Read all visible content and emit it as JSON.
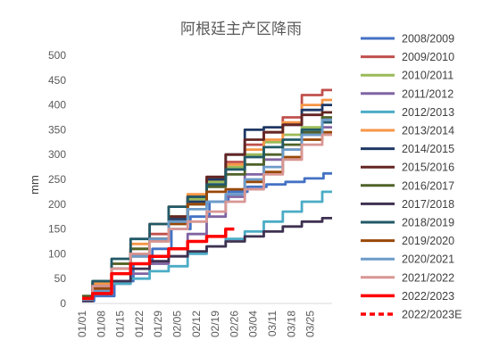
{
  "chart_data": {
    "type": "line",
    "title": "阿根廷主产区降雨",
    "xlabel": "",
    "ylabel": "mm",
    "ylim": [
      0,
      500
    ],
    "yticks": [
      0,
      50,
      100,
      150,
      200,
      250,
      300,
      350,
      400,
      450,
      500
    ],
    "xticks": [
      "01/01",
      "01/08",
      "01/15",
      "01/22",
      "01/29",
      "02/05",
      "02/12",
      "02/19",
      "02/26",
      "03/04",
      "03/11",
      "03/18",
      "03/25"
    ],
    "x_day_range": [
      0,
      92
    ],
    "grid": false,
    "legend_position": "right",
    "series": [
      {
        "name": "2008/2009",
        "color": "#4472C4",
        "dash": false,
        "points": [
          [
            0,
            5
          ],
          [
            8,
            15
          ],
          [
            15,
            45
          ],
          [
            22,
            80
          ],
          [
            29,
            110
          ],
          [
            36,
            150
          ],
          [
            43,
            175
          ],
          [
            50,
            205
          ],
          [
            57,
            225
          ],
          [
            64,
            235
          ],
          [
            71,
            240
          ],
          [
            78,
            245
          ],
          [
            85,
            252
          ],
          [
            92,
            262
          ]
        ]
      },
      {
        "name": "2009/2010",
        "color": "#C0504D",
        "dash": false,
        "points": [
          [
            0,
            10
          ],
          [
            7,
            30
          ],
          [
            14,
            70
          ],
          [
            21,
            110
          ],
          [
            28,
            140
          ],
          [
            35,
            175
          ],
          [
            42,
            215
          ],
          [
            49,
            250
          ],
          [
            56,
            285
          ],
          [
            63,
            320
          ],
          [
            70,
            345
          ],
          [
            77,
            375
          ],
          [
            84,
            420
          ],
          [
            92,
            430
          ]
        ]
      },
      {
        "name": "2010/2011",
        "color": "#9BBB59",
        "dash": false,
        "points": [
          [
            0,
            8
          ],
          [
            7,
            35
          ],
          [
            14,
            60
          ],
          [
            21,
            95
          ],
          [
            28,
            125
          ],
          [
            35,
            175
          ],
          [
            42,
            210
          ],
          [
            49,
            245
          ],
          [
            56,
            275
          ],
          [
            63,
            300
          ],
          [
            70,
            325
          ],
          [
            77,
            340
          ],
          [
            84,
            355
          ],
          [
            92,
            385
          ]
        ]
      },
      {
        "name": "2011/2012",
        "color": "#8064A2",
        "dash": false,
        "points": [
          [
            0,
            5
          ],
          [
            7,
            20
          ],
          [
            14,
            40
          ],
          [
            21,
            60
          ],
          [
            28,
            80
          ],
          [
            35,
            95
          ],
          [
            42,
            140
          ],
          [
            49,
            175
          ],
          [
            56,
            215
          ],
          [
            63,
            260
          ],
          [
            70,
            290
          ],
          [
            77,
            310
          ],
          [
            84,
            340
          ],
          [
            92,
            355
          ]
        ]
      },
      {
        "name": "2012/2013",
        "color": "#4BACC6",
        "dash": false,
        "points": [
          [
            0,
            5
          ],
          [
            7,
            20
          ],
          [
            14,
            40
          ],
          [
            21,
            50
          ],
          [
            28,
            65
          ],
          [
            35,
            75
          ],
          [
            42,
            100
          ],
          [
            49,
            115
          ],
          [
            56,
            130
          ],
          [
            63,
            145
          ],
          [
            70,
            165
          ],
          [
            77,
            185
          ],
          [
            84,
            205
          ],
          [
            92,
            225
          ]
        ]
      },
      {
        "name": "2013/2014",
        "color": "#F79646",
        "dash": false,
        "points": [
          [
            0,
            12
          ],
          [
            7,
            40
          ],
          [
            14,
            80
          ],
          [
            21,
            120
          ],
          [
            28,
            160
          ],
          [
            35,
            195
          ],
          [
            42,
            220
          ],
          [
            49,
            250
          ],
          [
            56,
            280
          ],
          [
            63,
            310
          ],
          [
            70,
            330
          ],
          [
            77,
            365
          ],
          [
            84,
            400
          ],
          [
            92,
            410
          ]
        ]
      },
      {
        "name": "2014/2015",
        "color": "#1F3864",
        "dash": false,
        "points": [
          [
            0,
            10
          ],
          [
            7,
            35
          ],
          [
            14,
            70
          ],
          [
            21,
            100
          ],
          [
            28,
            130
          ],
          [
            35,
            170
          ],
          [
            42,
            205
          ],
          [
            49,
            250
          ],
          [
            56,
            300
          ],
          [
            63,
            350
          ],
          [
            70,
            355
          ],
          [
            77,
            360
          ],
          [
            84,
            390
          ],
          [
            92,
            400
          ]
        ]
      },
      {
        "name": "2015/2016",
        "color": "#632523",
        "dash": false,
        "points": [
          [
            0,
            8
          ],
          [
            7,
            30
          ],
          [
            14,
            60
          ],
          [
            21,
            95
          ],
          [
            28,
            130
          ],
          [
            35,
            175
          ],
          [
            42,
            215
          ],
          [
            49,
            255
          ],
          [
            56,
            300
          ],
          [
            63,
            330
          ],
          [
            70,
            345
          ],
          [
            77,
            360
          ],
          [
            84,
            380
          ],
          [
            92,
            385
          ]
        ]
      },
      {
        "name": "2016/2017",
        "color": "#4F6228",
        "dash": false,
        "points": [
          [
            0,
            15
          ],
          [
            7,
            45
          ],
          [
            14,
            80
          ],
          [
            21,
            110
          ],
          [
            28,
            130
          ],
          [
            35,
            165
          ],
          [
            42,
            200
          ],
          [
            49,
            235
          ],
          [
            56,
            260
          ],
          [
            63,
            280
          ],
          [
            70,
            300
          ],
          [
            77,
            320
          ],
          [
            84,
            345
          ],
          [
            92,
            375
          ]
        ]
      },
      {
        "name": "2017/2018",
        "color": "#3F3151",
        "dash": false,
        "points": [
          [
            0,
            5
          ],
          [
            7,
            20
          ],
          [
            14,
            45
          ],
          [
            21,
            70
          ],
          [
            28,
            85
          ],
          [
            35,
            95
          ],
          [
            42,
            105
          ],
          [
            49,
            115
          ],
          [
            56,
            125
          ],
          [
            63,
            135
          ],
          [
            70,
            145
          ],
          [
            77,
            155
          ],
          [
            84,
            165
          ],
          [
            92,
            172
          ]
        ]
      },
      {
        "name": "2018/2019",
        "color": "#215967",
        "dash": false,
        "points": [
          [
            0,
            10
          ],
          [
            7,
            45
          ],
          [
            14,
            90
          ],
          [
            21,
            130
          ],
          [
            28,
            160
          ],
          [
            35,
            195
          ],
          [
            42,
            215
          ],
          [
            49,
            240
          ],
          [
            56,
            270
          ],
          [
            63,
            295
          ],
          [
            70,
            315
          ],
          [
            77,
            330
          ],
          [
            84,
            350
          ],
          [
            92,
            365
          ]
        ]
      },
      {
        "name": "2019/2020",
        "color": "#984807",
        "dash": false,
        "points": [
          [
            0,
            10
          ],
          [
            7,
            30
          ],
          [
            14,
            60
          ],
          [
            21,
            100
          ],
          [
            28,
            130
          ],
          [
            35,
            160
          ],
          [
            42,
            200
          ],
          [
            49,
            225
          ],
          [
            56,
            230
          ],
          [
            63,
            245
          ],
          [
            70,
            265
          ],
          [
            77,
            295
          ],
          [
            84,
            330
          ],
          [
            92,
            345
          ]
        ]
      },
      {
        "name": "2020/2021",
        "color": "#6C9BC9",
        "dash": false,
        "points": [
          [
            0,
            8
          ],
          [
            7,
            25
          ],
          [
            14,
            60
          ],
          [
            21,
            95
          ],
          [
            28,
            130
          ],
          [
            35,
            165
          ],
          [
            42,
            190
          ],
          [
            49,
            205
          ],
          [
            56,
            220
          ],
          [
            63,
            250
          ],
          [
            70,
            275
          ],
          [
            77,
            310
          ],
          [
            84,
            340
          ],
          [
            92,
            370
          ]
        ]
      },
      {
        "name": "2021/2022",
        "color": "#D99694",
        "dash": false,
        "points": [
          [
            0,
            10
          ],
          [
            7,
            35
          ],
          [
            14,
            70
          ],
          [
            21,
            100
          ],
          [
            28,
            125
          ],
          [
            35,
            150
          ],
          [
            42,
            165
          ],
          [
            49,
            185
          ],
          [
            56,
            205
          ],
          [
            63,
            230
          ],
          [
            70,
            260
          ],
          [
            77,
            290
          ],
          [
            84,
            320
          ],
          [
            92,
            340
          ]
        ]
      },
      {
        "name": "2022/2023",
        "color": "#FF0000",
        "dash": false,
        "points": [
          [
            0,
            10
          ],
          [
            7,
            20
          ],
          [
            14,
            60
          ],
          [
            21,
            80
          ],
          [
            28,
            95
          ],
          [
            35,
            110
          ],
          [
            42,
            125
          ],
          [
            49,
            135
          ],
          [
            56,
            150
          ]
        ]
      },
      {
        "name": "2022/2023E",
        "color": "#FF0000",
        "dash": true,
        "points": []
      }
    ]
  }
}
